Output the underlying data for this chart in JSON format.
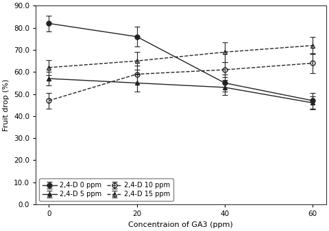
{
  "x": [
    0,
    20,
    40,
    60
  ],
  "series_order": [
    "2,4-D 0 ppm",
    "2,4-D 5 ppm",
    "2,4-D 10 ppm",
    "2,4-D 15 ppm"
  ],
  "series": {
    "2,4-D 0 ppm": {
      "y": [
        82.0,
        76.0,
        55.0,
        47.0
      ],
      "yerr": [
        3.5,
        4.5,
        4.0,
        3.5
      ],
      "marker": "o",
      "linestyle": "-",
      "fillstyle": "full",
      "color": "#222222",
      "label": "2,4-D 0 ppm"
    },
    "2,4-D 5 ppm": {
      "y": [
        57.0,
        55.0,
        53.0,
        46.0
      ],
      "yerr": [
        3.0,
        4.0,
        3.5,
        3.0
      ],
      "marker": "^",
      "linestyle": "-",
      "fillstyle": "full",
      "color": "#222222",
      "label": "2,4-D 5 ppm"
    },
    "2,4-D 10 ppm": {
      "y": [
        47.0,
        59.0,
        61.0,
        64.0
      ],
      "yerr": [
        3.5,
        4.0,
        3.5,
        4.5
      ],
      "marker": "o",
      "linestyle": "--",
      "fillstyle": "none",
      "color": "#222222",
      "label": "2,4-D 10 ppm"
    },
    "2,4-D 15 ppm": {
      "y": [
        62.0,
        65.0,
        69.0,
        72.0
      ],
      "yerr": [
        3.5,
        4.0,
        4.5,
        4.0
      ],
      "marker": "^",
      "linestyle": "--",
      "fillstyle": "none",
      "color": "#222222",
      "label": "2,4-D 15 ppm"
    }
  },
  "xlabel": "Concentraion of GA3 (ppm)",
  "ylabel": "Fruit drop (%)",
  "ylim": [
    0.0,
    90.0
  ],
  "yticks": [
    0.0,
    10.0,
    20.0,
    30.0,
    40.0,
    50.0,
    60.0,
    70.0,
    80.0,
    90.0
  ],
  "xticks": [
    0,
    20,
    40,
    60
  ],
  "background_color": "#ffffff",
  "figsize": [
    4.8,
    3.38
  ],
  "dpi": 100
}
